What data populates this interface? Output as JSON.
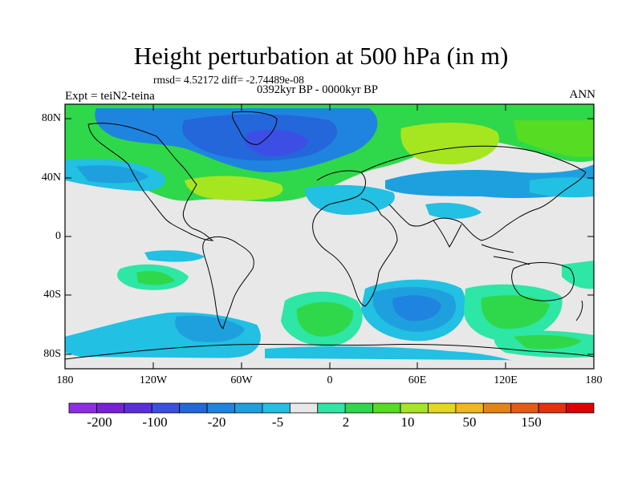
{
  "title": "Height perturbation at 500 hPa (in m)",
  "stats_line": "rmsd= 4.52172 diff= -2.74489e-08",
  "period": "0392kyr BP - 0000kyr BP",
  "experiment": "Expt = teiN2-teina",
  "season": "ANN",
  "lat_ticks": [
    "80N",
    "40N",
    "0",
    "40S",
    "80S"
  ],
  "lon_ticks": [
    "180",
    "120W",
    "60W",
    "0",
    "60E",
    "120E",
    "180"
  ],
  "colorbar": {
    "colors": [
      "#8f2de6",
      "#7a1fd8",
      "#5a2ee0",
      "#3d4ee5",
      "#2367da",
      "#1f84e0",
      "#1ea0de",
      "#22c0e2",
      "#e8e8e8",
      "#2ee6a5",
      "#2fd84a",
      "#56dc22",
      "#a6e620",
      "#e2d81e",
      "#f0b81c",
      "#e48418",
      "#e65a16",
      "#e6300e",
      "#e00000"
    ],
    "labels": [
      "-200",
      "-100",
      "-20",
      "-5",
      "2",
      "10",
      "50",
      "150"
    ]
  },
  "icons": {
    "coastline": "coastline-outline"
  }
}
